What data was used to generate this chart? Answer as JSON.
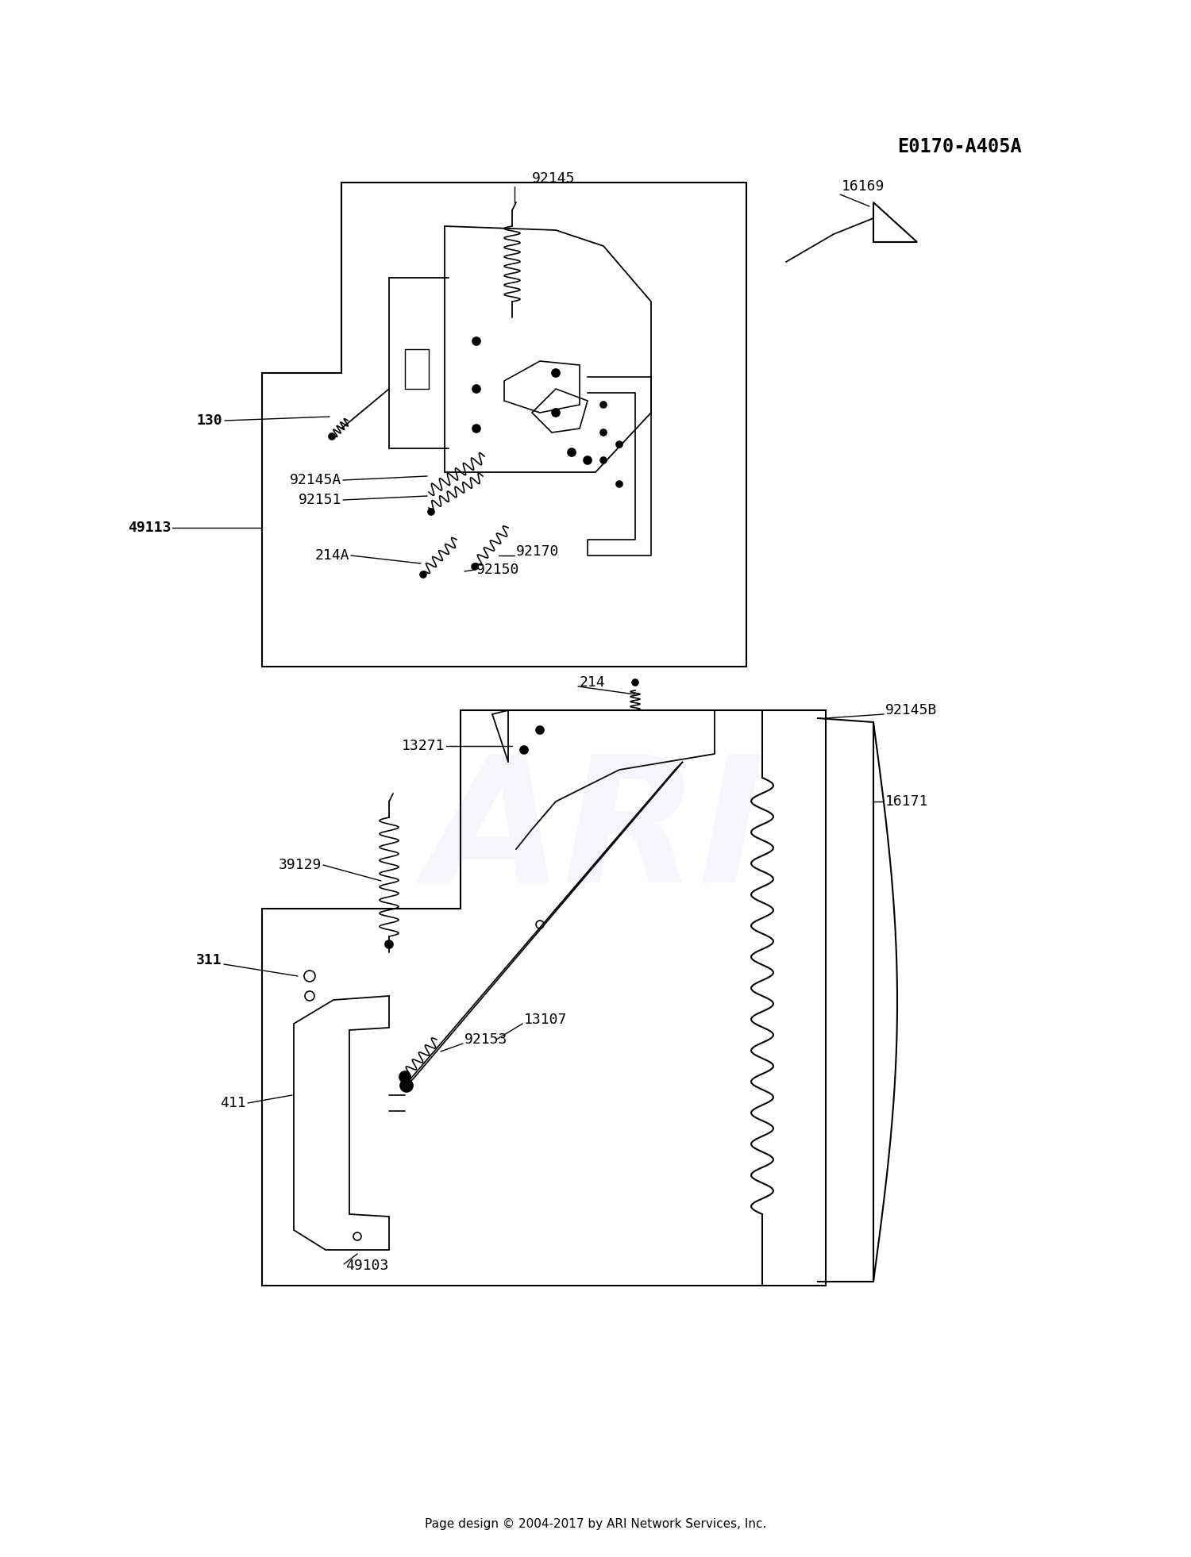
{
  "bg_color": "#ffffff",
  "diagram_code": "E0170-A405A",
  "footer_text": "Page design © 2004-2017 by ARI Network Services, Inc.",
  "watermark": "ARI",
  "line_color": "#000000",
  "lw": 1.3
}
